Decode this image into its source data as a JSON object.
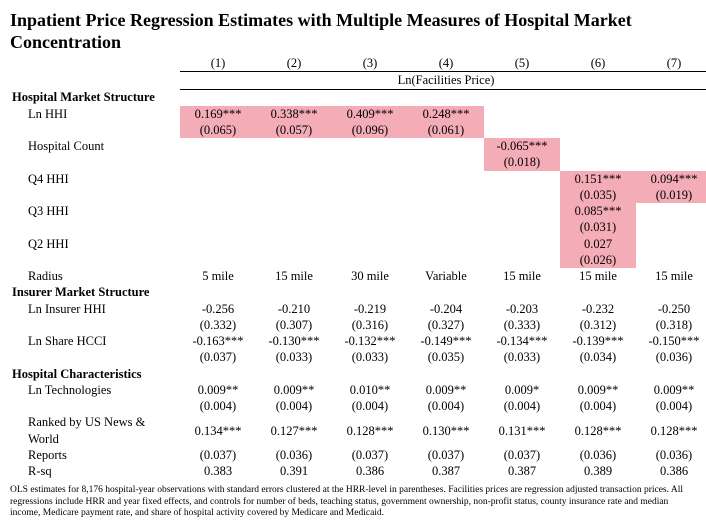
{
  "title": "Inpatient Price Regression Estimates with Multiple Measures of Hospital Market Concentration",
  "col_heads": [
    "(1)",
    "(2)",
    "(3)",
    "(4)",
    "(5)",
    "(6)",
    "(7)"
  ],
  "dep_var": "Ln(Facilities Price)",
  "sections": {
    "s1": "Hospital Market Structure",
    "s2": "Insurer Market Structure",
    "s3": "Hospital Characteristics"
  },
  "rows": {
    "lnhhi": {
      "label": "Ln HHI",
      "est": [
        "0.169***",
        "0.338***",
        "0.409***",
        "0.248***",
        "",
        "",
        ""
      ],
      "se": [
        "(0.065)",
        "(0.057)",
        "(0.096)",
        "(0.061)",
        "",
        "",
        ""
      ],
      "hl": [
        1,
        1,
        1,
        1,
        0,
        0,
        0
      ]
    },
    "hcount": {
      "label": "Hospital Count",
      "est": [
        "",
        "",
        "",
        "",
        "-0.065***",
        "",
        ""
      ],
      "se": [
        "",
        "",
        "",
        "",
        "(0.018)",
        "",
        ""
      ],
      "hl": [
        0,
        0,
        0,
        0,
        1,
        0,
        0
      ]
    },
    "q4": {
      "label": "Q4 HHI",
      "est": [
        "",
        "",
        "",
        "",
        "",
        "0.151***",
        "0.094***"
      ],
      "se": [
        "",
        "",
        "",
        "",
        "",
        "(0.035)",
        "(0.019)"
      ],
      "hl": [
        0,
        0,
        0,
        0,
        0,
        1,
        1
      ]
    },
    "q3": {
      "label": "Q3 HHI",
      "est": [
        "",
        "",
        "",
        "",
        "",
        "0.085***",
        ""
      ],
      "se": [
        "",
        "",
        "",
        "",
        "",
        "(0.031)",
        ""
      ],
      "hl": [
        0,
        0,
        0,
        0,
        0,
        1,
        0
      ]
    },
    "q2": {
      "label": "Q2 HHI",
      "est": [
        "",
        "",
        "",
        "",
        "",
        "0.027",
        ""
      ],
      "se": [
        "",
        "",
        "",
        "",
        "",
        "(0.026)",
        ""
      ],
      "hl": [
        0,
        0,
        0,
        0,
        0,
        1,
        0
      ]
    },
    "radius": {
      "label": "Radius",
      "est": [
        "5 mile",
        "15 mile",
        "30 mile",
        "Variable",
        "15 mile",
        "15 mile",
        "15 mile"
      ],
      "se": null,
      "hl": [
        0,
        0,
        0,
        0,
        0,
        0,
        0
      ]
    },
    "linshhi": {
      "label": "Ln Insurer HHI",
      "est": [
        "-0.256",
        "-0.210",
        "-0.219",
        "-0.204",
        "-0.203",
        "-0.232",
        "-0.250"
      ],
      "se": [
        "(0.332)",
        "(0.307)",
        "(0.316)",
        "(0.327)",
        "(0.333)",
        "(0.312)",
        "(0.318)"
      ],
      "hl": [
        0,
        0,
        0,
        0,
        0,
        0,
        0
      ]
    },
    "lnshare": {
      "label": "Ln Share HCCI",
      "est": [
        "-0.163***",
        "-0.130***",
        "-0.132***",
        "-0.149***",
        "-0.134***",
        "-0.139***",
        "-0.150***"
      ],
      "se": [
        "(0.037)",
        "(0.033)",
        "(0.033)",
        "(0.035)",
        "(0.033)",
        "(0.034)",
        "(0.036)"
      ],
      "hl": [
        0,
        0,
        0,
        0,
        0,
        0,
        0
      ]
    },
    "lntech": {
      "label": "Ln Technologies",
      "est": [
        "0.009**",
        "0.009**",
        "0.010**",
        "0.009**",
        "0.009*",
        "0.009**",
        "0.009**"
      ],
      "se": [
        "(0.004)",
        "(0.004)",
        "(0.004)",
        "(0.004)",
        "(0.004)",
        "(0.004)",
        "(0.004)"
      ],
      "hl": [
        0,
        0,
        0,
        0,
        0,
        0,
        0
      ]
    },
    "usnews": {
      "label": "Ranked by US News & World Reports",
      "est": [
        "0.134***",
        "0.127***",
        "0.128***",
        "0.130***",
        "0.131***",
        "0.128***",
        "0.128***"
      ],
      "se": [
        "(0.037)",
        "(0.036)",
        "(0.037)",
        "(0.037)",
        "(0.037)",
        "(0.036)",
        "(0.036)"
      ],
      "hl": [
        0,
        0,
        0,
        0,
        0,
        0,
        0
      ]
    },
    "rsq": {
      "label": "R-sq",
      "est": [
        "0.383",
        "0.391",
        "0.386",
        "0.387",
        "0.387",
        "0.389",
        "0.386"
      ],
      "se": null,
      "hl": [
        0,
        0,
        0,
        0,
        0,
        0,
        0
      ]
    }
  },
  "footnote": "OLS estimates for 8,176 hospital-year observations with standard errors clustered at the HRR-level in parentheses. Facilities prices are regression adjusted transaction prices. All regressions include HRR and year fixed effects, and controls for number of beds, teaching status, government ownership, non-profit status, county insurance rate and median income, Medicare payment rate, and share of hospital activity covered by Medicare and Medicaid.",
  "highlight_color": "#f4acb7"
}
